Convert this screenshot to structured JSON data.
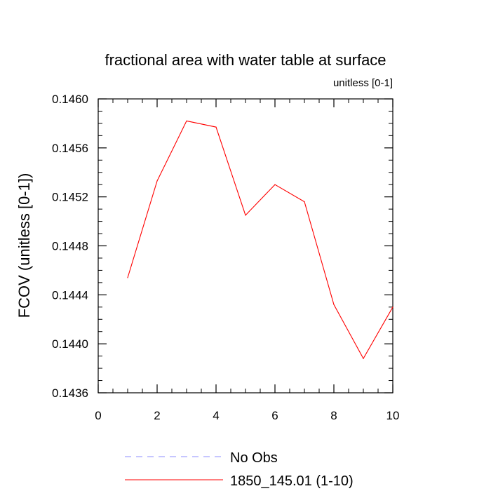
{
  "chart_data": {
    "type": "line",
    "title": "fractional area with water table at surface",
    "subtitle": "unitless [0-1]",
    "xlabel": "",
    "ylabel": "FCOV  (unitless [0-1])",
    "xlim": [
      0,
      10
    ],
    "ylim": [
      0.1436,
      0.146
    ],
    "x_ticks": [
      "0",
      "2",
      "4",
      "6",
      "8",
      "10"
    ],
    "y_ticks": [
      "0.1436",
      "0.1440",
      "0.1444",
      "0.1448",
      "0.1452",
      "0.1456",
      "0.1460"
    ],
    "grid": false,
    "legend_position": "bottom",
    "series": [
      {
        "name": "No Obs",
        "color": "#8c8cff",
        "dash": "dashed",
        "x": [],
        "values": []
      },
      {
        "name": "1850_145.01 (1-10)",
        "color": "#ff0000",
        "dash": "solid",
        "x": [
          1,
          2,
          3,
          4,
          5,
          6,
          7,
          8,
          9,
          10
        ],
        "values": [
          0.14454,
          0.14533,
          0.14582,
          0.14577,
          0.14505,
          0.1453,
          0.14516,
          0.14432,
          0.14388,
          0.1443
        ]
      }
    ]
  }
}
